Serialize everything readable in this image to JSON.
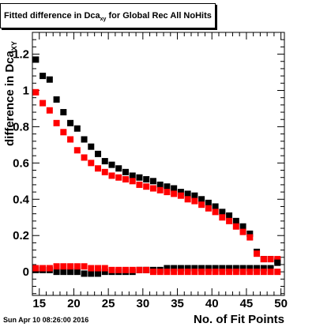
{
  "chart_data": {
    "type": "scatter",
    "title_main": "Fitted difference in Dca",
    "title_sub": "xy",
    "title_tail": " for Global Rec All NoHits",
    "xlabel": "No. of Fit Points",
    "ylabel_main": "difference in Dca",
    "ylabel_sub": "XY",
    "xlim": [
      14,
      50.5
    ],
    "ylim": [
      -0.13,
      1.32
    ],
    "xticks": [
      15,
      20,
      25,
      30,
      35,
      40,
      45,
      50
    ],
    "yticks": [
      0,
      0.2,
      0.4,
      0.6,
      0.8,
      1,
      1.2
    ],
    "ytick_labels": [
      "0",
      "0.2",
      "0.4",
      "0.6",
      "0.8",
      "1",
      "1.2"
    ],
    "x": [
      14.5,
      15.5,
      16.5,
      17.5,
      18.5,
      19.5,
      20.5,
      21.5,
      22.5,
      23.5,
      24.5,
      25.5,
      26.5,
      27.5,
      28.5,
      29.5,
      30.5,
      31.5,
      32.5,
      33.5,
      34.5,
      35.5,
      36.5,
      37.5,
      38.5,
      39.5,
      40.5,
      41.5,
      42.5,
      43.5,
      44.5,
      45.5,
      46.5,
      47.5,
      48.5,
      49.5
    ],
    "series": [
      {
        "color": "#000000",
        "values": [
          1.17,
          1.08,
          1.06,
          0.95,
          0.88,
          0.82,
          0.79,
          0.73,
          0.69,
          0.65,
          0.61,
          0.59,
          0.57,
          0.55,
          0.53,
          0.52,
          0.51,
          0.5,
          0.48,
          0.47,
          0.46,
          0.44,
          0.43,
          0.42,
          0.4,
          0.38,
          0.36,
          0.33,
          0.31,
          0.28,
          0.25,
          0.21,
          0.11,
          0.07,
          0.07,
          0.06
        ]
      },
      {
        "color": "#ff0000",
        "values": [
          0.99,
          0.93,
          0.89,
          0.82,
          0.77,
          0.73,
          0.67,
          0.63,
          0.6,
          0.57,
          0.55,
          0.53,
          0.52,
          0.51,
          0.5,
          0.48,
          0.47,
          0.46,
          0.45,
          0.44,
          0.43,
          0.42,
          0.4,
          0.39,
          0.37,
          0.35,
          0.33,
          0.3,
          0.28,
          0.25,
          0.22,
          0.19,
          0.1,
          0.07,
          0.07,
          0.07
        ]
      },
      {
        "color": "#000000",
        "values": [
          0.01,
          0.01,
          0.01,
          0.0,
          0.0,
          0.0,
          0.0,
          -0.01,
          -0.01,
          -0.01,
          0.0,
          0.0,
          0.0,
          0.0,
          0.0,
          0.01,
          0.01,
          0.01,
          0.01,
          0.02,
          0.02,
          0.02,
          0.02,
          0.02,
          0.02,
          0.02,
          0.02,
          0.02,
          0.02,
          0.02,
          0.02,
          0.02,
          0.02,
          0.02,
          0.02,
          0.05
        ]
      },
      {
        "color": "#ff0000",
        "values": [
          0.02,
          0.02,
          0.02,
          0.03,
          0.03,
          0.03,
          0.03,
          0.03,
          0.02,
          0.02,
          0.02,
          0.01,
          0.01,
          0.01,
          0.01,
          0.01,
          0.01,
          0.0,
          0.0,
          0.0,
          0.0,
          0.0,
          0.0,
          0.0,
          0.0,
          0.0,
          0.0,
          0.0,
          0.0,
          0.0,
          0.0,
          0.0,
          0.0,
          0.0,
          0.0,
          0.0
        ]
      }
    ]
  },
  "footer": {
    "timestamp": "Sun Apr 10 08:26:00 2016"
  }
}
